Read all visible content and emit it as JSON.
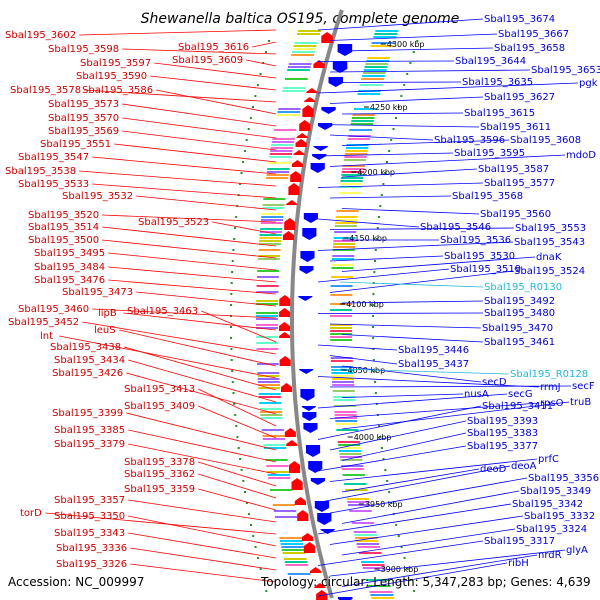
{
  "title": "Shewanella baltica OS195, complete genome",
  "accession": "Accession: NC_009997",
  "topology_info": "Topology: circular; Length: 5,347,283 bp; Genes: 4,639",
  "scale_labels": [
    "4300 kbp",
    "4250 kbp",
    "4200 kbp",
    "4150 kbp",
    "4100 kbp",
    "4050 kbp",
    "4000 kbp",
    "3950 kbp",
    "3900 kbp"
  ],
  "left_labels": [
    "Sbal195_3602",
    "Sbal195_3616",
    "Sbal195_3598",
    "Sbal195_3609",
    "Sbal195_3597",
    "Sbal195_3590",
    "Sbal195_3578",
    "Sbal195_3586",
    "Sbal195_3573",
    "Sbal195_3570",
    "Sbal195_3569",
    "Sbal195_3551",
    "Sbal195_3547",
    "Sbal195_3538",
    "Sbal195_3533",
    "Sbal195_3532",
    "Sbal195_3520",
    "Sbal195_3523",
    "Sbal195_3514",
    "Sbal195_3500",
    "Sbal195_3495",
    "Sbal195_3484",
    "Sbal195_3476",
    "Sbal195_3473",
    "Sbal195_3460",
    "lipB",
    "Sbal195_3463",
    "Sbal195_3452",
    "leuS",
    "lnt",
    "Sbal195_3438",
    "Sbal195_3434",
    "Sbal195_3426",
    "Sbal195_3413",
    "Sbal195_3409",
    "Sbal195_3399",
    "Sbal195_3385",
    "Sbal195_3379",
    "Sbal195_3378",
    "Sbal195_3362",
    "Sbal195_3359",
    "Sbal195_3357",
    "torD",
    "Sbal195_3350",
    "Sbal195_3343",
    "Sbal195_3336",
    "Sbal195_3326"
  ],
  "right_labels": [
    "Sbal195_3674",
    "Sbal195_3667",
    "Sbal195_3658",
    "Sbal195_3644",
    "Sbal195_3653",
    "Sbal195_3635",
    "pgk",
    "Sbal195_3627",
    "Sbal195_3615",
    "Sbal195_3611",
    "Sbal195_3596",
    "Sbal195_3608",
    "Sbal195_3595",
    "mdoD",
    "Sbal195_3587",
    "Sbal195_3577",
    "Sbal195_3568",
    "Sbal195_3560",
    "Sbal195_3546",
    "Sbal195_3553",
    "Sbal195_3536",
    "Sbal195_3543",
    "Sbal195_3530",
    "dnaK",
    "Sbal195_3519",
    "Sbal195_3524",
    "Sbal195_3492",
    "Sbal195_3480",
    "Sbal195_3470",
    "Sbal195_3461",
    "Sbal195_3446",
    "Sbal195_3437",
    "secD",
    "rrmJ",
    "secF",
    "nusA",
    "secG",
    "rpsO",
    "truB",
    "Sbal195_3411",
    "Sbal195_3393",
    "Sbal195_3383",
    "Sbal195_3377",
    "prfC",
    "deoD",
    "deoA",
    "Sbal195_3356",
    "Sbal195_3349",
    "Sbal195_3342",
    "Sbal195_3332",
    "Sbal195_3324",
    "Sbal195_3317",
    "glyA",
    "nrdR",
    "ribH"
  ],
  "rna_labels": [
    "Sbal195_R0130",
    "Sbal195_R0128"
  ],
  "colors": {
    "forward_genes": "#ff0000",
    "reverse_genes": "#0000ff",
    "rna_genes": "#22b8d8",
    "backbone": "#888888",
    "ticks": "#2a8c2a"
  }
}
